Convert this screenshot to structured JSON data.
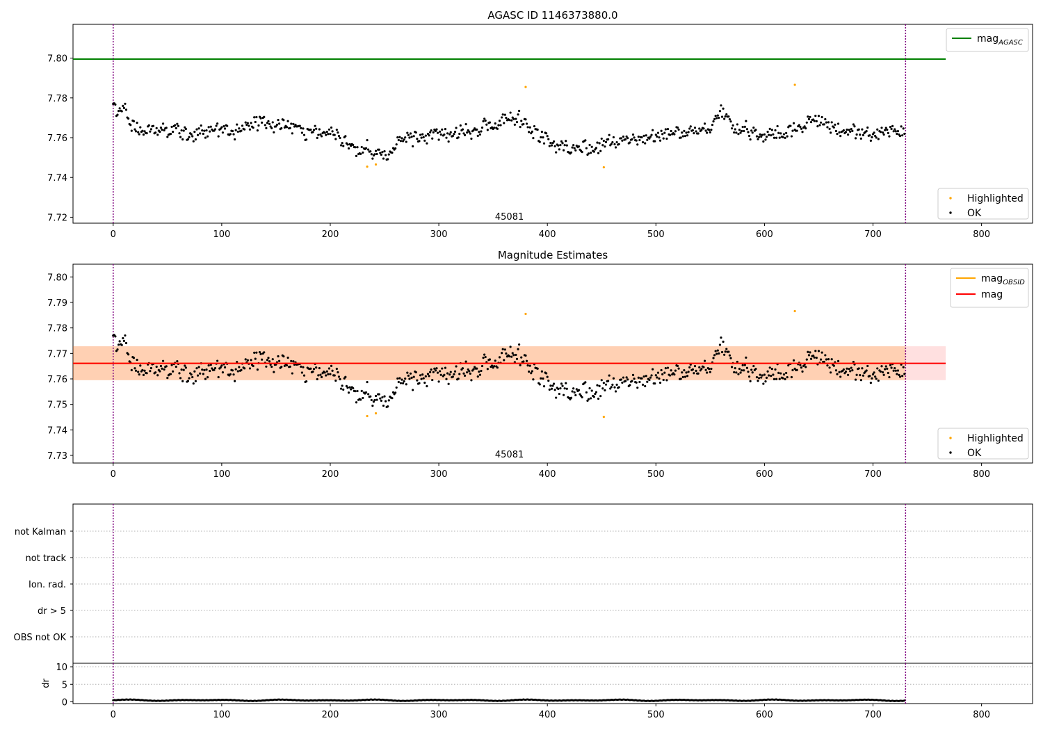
{
  "chart_data": [
    {
      "type": "scatter",
      "title": "AGASC ID 1146373880.0",
      "xlim": [
        -37,
        847
      ],
      "ylim": [
        7.717,
        7.817
      ],
      "xticks": [
        0,
        100,
        200,
        300,
        400,
        500,
        600,
        700,
        800
      ],
      "yticks": [
        7.72,
        7.74,
        7.76,
        7.78,
        7.8
      ],
      "vlines": [
        0,
        730
      ],
      "annotation": {
        "text": "45081",
        "x": 365,
        "y": 7.7205
      },
      "reference_lines": [
        {
          "name": "mag_AGASC",
          "label_main": "mag",
          "label_sub": "AGASC",
          "color": "#008000",
          "y": 7.7995,
          "x": [
            -37,
            767
          ]
        }
      ],
      "series": [
        {
          "name": "Highlighted",
          "color": "#ffa500",
          "points": [
            [
              234,
              7.7454
            ],
            [
              242,
              7.7465
            ],
            [
              380,
              7.7855
            ],
            [
              452,
              7.7451
            ],
            [
              628,
              7.7866
            ]
          ]
        },
        {
          "name": "OK",
          "color": "#000000",
          "model": {
            "n": 730,
            "base": 7.7628,
            "seed": 45081,
            "noise": 0.0055,
            "dips": [
              [
                240,
                0.011,
                30
              ],
              [
                420,
                0.009,
                30
              ],
              [
                470,
                0.005,
                20
              ]
            ],
            "bumps": [
              [
                10,
                0.013,
                8
              ],
              [
                140,
                0.005,
                20
              ],
              [
                370,
                0.007,
                20
              ],
              [
                560,
                0.009,
                10
              ],
              [
                645,
                0.007,
                12
              ]
            ]
          }
        }
      ]
    },
    {
      "type": "scatter",
      "title": "Magnitude Estimates",
      "xlim": [
        -37,
        847
      ],
      "ylim": [
        7.727,
        7.805
      ],
      "xticks": [
        0,
        100,
        200,
        300,
        400,
        500,
        600,
        700,
        800
      ],
      "yticks": [
        7.73,
        7.74,
        7.75,
        7.76,
        7.77,
        7.78,
        7.79,
        7.8
      ],
      "vlines": [
        0,
        730
      ],
      "annotation": {
        "text": "45081",
        "x": 365,
        "y": 7.7305
      },
      "reference_lines": [
        {
          "name": "mag_OBSID",
          "label_main": "mag",
          "label_sub": "OBSID",
          "color": "#ffa500",
          "y": 7.7661,
          "x": [
            -37,
            730
          ]
        },
        {
          "name": "mag",
          "label_main": "mag",
          "label_sub": "",
          "color": "#ff0000",
          "y": 7.7661,
          "x": [
            -37,
            767
          ]
        }
      ],
      "bands": [
        {
          "color": "#ffa500",
          "opacity": 0.2,
          "y": [
            7.7595,
            7.7728
          ],
          "x": [
            -37,
            730
          ]
        },
        {
          "color": "#ff0000",
          "opacity": 0.12,
          "y": [
            7.7595,
            7.7728
          ],
          "x": [
            -37,
            767
          ]
        }
      ],
      "series": [
        {
          "name": "Highlighted",
          "color": "#ffa500",
          "points": [
            [
              234,
              7.7454
            ],
            [
              242,
              7.7465
            ],
            [
              380,
              7.7855
            ],
            [
              452,
              7.7451
            ],
            [
              628,
              7.7866
            ]
          ]
        },
        {
          "name": "OK",
          "color": "#000000",
          "model": "same-as-panel-1"
        }
      ]
    },
    {
      "type": "categorical-flags",
      "xlim": [
        -37,
        847
      ],
      "categories": [
        "not Kalman",
        "not track",
        "Ion. rad.",
        "dr > 5",
        "OBS not OK"
      ],
      "vlines": [
        0,
        730
      ]
    },
    {
      "type": "scatter",
      "ylabel": "dr",
      "xlim": [
        -37,
        847
      ],
      "ylim": [
        -0.5,
        11
      ],
      "xticks": [
        0,
        100,
        200,
        300,
        400,
        500,
        600,
        700,
        800
      ],
      "yticks": [
        0,
        5,
        10
      ],
      "vlines": [
        0,
        730
      ],
      "series": [
        {
          "name": "dr",
          "color": "#000000",
          "model": {
            "n": 730,
            "base": 0.45,
            "amp": 0.2
          }
        }
      ]
    }
  ]
}
